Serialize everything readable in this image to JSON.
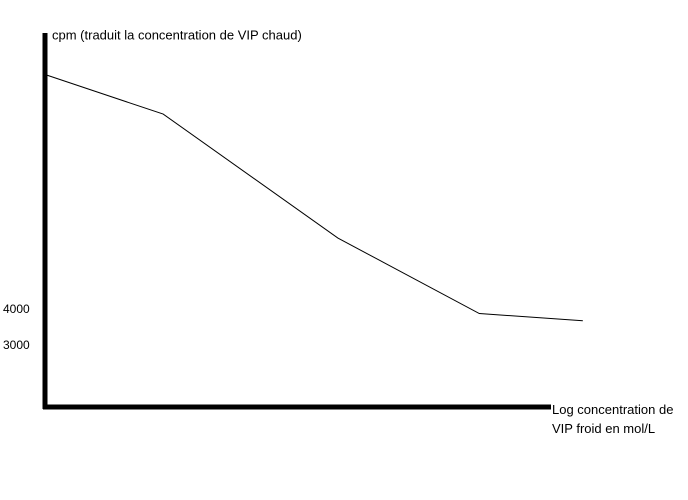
{
  "chart_data": {
    "type": "line",
    "ylabel": "cpm (traduit la concentration de VIP chaud)",
    "xlabel": "Log concentration de VIP froid en mol/L",
    "x": [
      0,
      2.34,
      5.8,
      8.6,
      10.65
    ],
    "series": [
      {
        "color": "#000000",
        "values": [
          10550,
          9450,
          6000,
          3900,
          3700
        ]
      }
    ],
    "xlim": [
      0,
      10
    ],
    "ylim": [
      1300,
      11650
    ],
    "yticks": [
      3000,
      4000
    ]
  }
}
